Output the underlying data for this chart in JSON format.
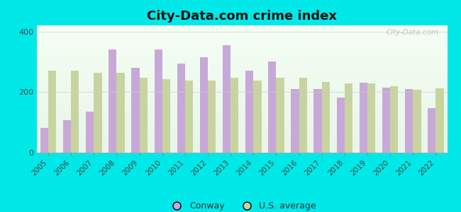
{
  "years": [
    2005,
    2006,
    2007,
    2008,
    2009,
    2010,
    2011,
    2012,
    2013,
    2014,
    2015,
    2016,
    2017,
    2018,
    2019,
    2020,
    2021,
    2022
  ],
  "conway": [
    82,
    108,
    135,
    340,
    280,
    340,
    295,
    315,
    355,
    270,
    300,
    210,
    210,
    183,
    230,
    215,
    210,
    148
  ],
  "us_avg": [
    270,
    270,
    263,
    263,
    248,
    243,
    238,
    238,
    248,
    238,
    248,
    248,
    233,
    228,
    228,
    220,
    208,
    213
  ],
  "title": "City-Data.com crime index",
  "title_fontsize": 13,
  "conway_color": "#c8a8d8",
  "us_avg_color": "#c8d4a0",
  "bg_top_color": "#f8fff8",
  "bg_bottom_color": "#d8f0d8",
  "outer_background": "#00e8e8",
  "ylabel_ticks": [
    0,
    200,
    400
  ],
  "ylim": [
    0,
    420
  ],
  "bar_width": 0.35,
  "legend_conway": "Conway",
  "legend_us": "U.S. average",
  "watermark": "City-Data.com"
}
